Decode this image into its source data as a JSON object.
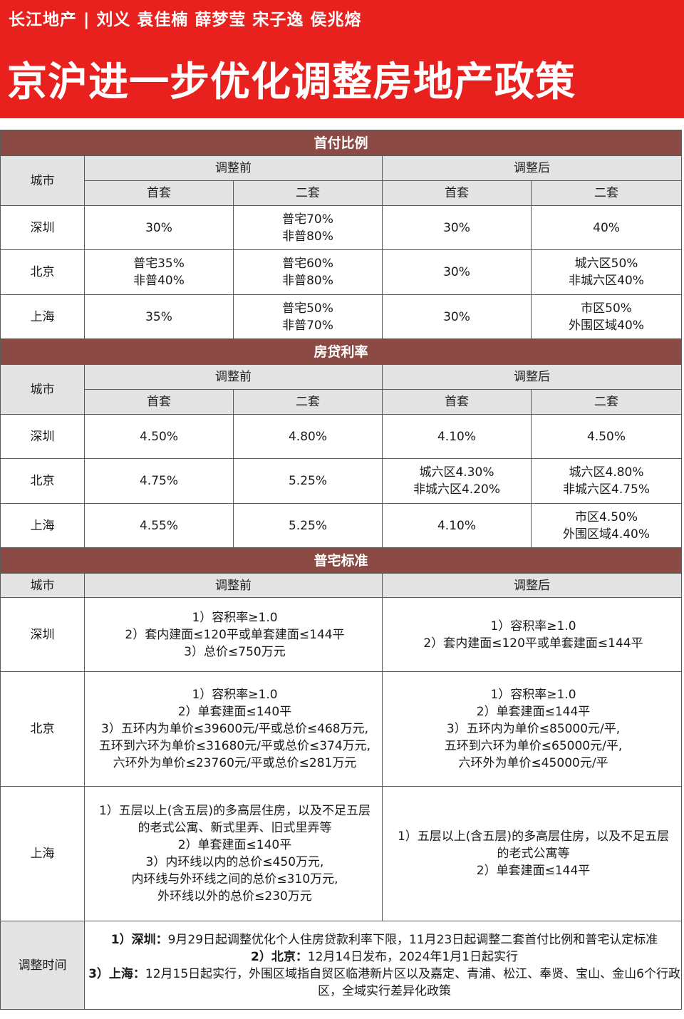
{
  "header": {
    "authors": "长江地产 | 刘义  袁佳楠  薛梦莹  宋子逸  侯兆熔",
    "title": "京沪进一步优化调整房地产政策"
  },
  "labels": {
    "city": "城市",
    "before": "调整前",
    "after": "调整后",
    "first_home": "首套",
    "second_home": "二套"
  },
  "sections": {
    "down_payment": "首付比例",
    "mortgage_rate": "房贷利率",
    "ordinary_housing": "普宅标准",
    "timing": "调整时间"
  },
  "down_payment_rows": [
    {
      "city": "深圳",
      "before_first": [
        "30%"
      ],
      "before_second": [
        "普宅70%",
        "非普80%"
      ],
      "after_first": [
        "30%"
      ],
      "after_second": [
        "40%"
      ]
    },
    {
      "city": "北京",
      "before_first": [
        "普宅35%",
        "非普40%"
      ],
      "before_second": [
        "普宅60%",
        "非普80%"
      ],
      "after_first": [
        "30%"
      ],
      "after_second": [
        "城六区50%",
        "非城六区40%"
      ]
    },
    {
      "city": "上海",
      "before_first": [
        "35%"
      ],
      "before_second": [
        "普宅50%",
        "非普70%"
      ],
      "after_first": [
        "30%"
      ],
      "after_second": [
        "市区50%",
        "外围区域40%"
      ]
    }
  ],
  "rate_rows": [
    {
      "city": "深圳",
      "before_first": [
        "4.50%"
      ],
      "before_second": [
        "4.80%"
      ],
      "after_first": [
        "4.10%"
      ],
      "after_second": [
        "4.50%"
      ]
    },
    {
      "city": "北京",
      "before_first": [
        "4.75%"
      ],
      "before_second": [
        "5.25%"
      ],
      "after_first": [
        "城六区4.30%",
        "非城六区4.20%"
      ],
      "after_second": [
        "城六区4.80%",
        "非城六区4.75%"
      ]
    },
    {
      "city": "上海",
      "before_first": [
        "4.55%"
      ],
      "before_second": [
        "5.25%"
      ],
      "after_first": [
        "4.10%"
      ],
      "after_second": [
        "市区4.50%",
        "外围区域4.40%"
      ]
    }
  ],
  "standard_rows": [
    {
      "city": "深圳",
      "before": [
        "1）容积率≥1.0",
        "2）套内建面≤120平或单套建面≤144平",
        "3）总价≤750万元"
      ],
      "after": [
        "1）容积率≥1.0",
        "2）套内建面≤120平或单套建面≤144平"
      ]
    },
    {
      "city": "北京",
      "before": [
        "1）容积率≥1.0",
        "2）单套建面≤140平",
        "3）五环内为单价≤39600元/平或总价≤468万元,",
        "五环到六环为单价≤31680元/平或总价≤374万元,",
        "六环外为单价≤23760元/平或总价≤281万元"
      ],
      "after": [
        "1）容积率≥1.0",
        "2）单套建面≤144平",
        "3）五环内为单价≤85000元/平,",
        "五环到六环为单价≤65000元/平,",
        "六环外为单价≤45000元/平"
      ]
    },
    {
      "city": "上海",
      "before": [
        "1）五层以上(含五层)的多高层住房，以及不足五层",
        "的老式公寓、新式里弄、旧式里弄等",
        "2）单套建面≤140平",
        "3）内环线以内的总价≤450万元,",
        "内环线与外环线之间的总价≤310万元,",
        "外环线以外的总价≤230万元"
      ],
      "after": [
        "1）五层以上(含五层)的多高层住房，以及不足五层",
        "的老式公寓等",
        "2）单套建面≤144平"
      ]
    }
  ],
  "timing_items": [
    {
      "prefix": "1）深圳：",
      "text": "9月29日起调整优化个人住房贷款利率下限，11月23日起调整二套首付比例和普宅认定标准"
    },
    {
      "prefix": "2）北京：",
      "text": "12月14日发布，2024年1月1日起实行"
    },
    {
      "prefix": "3）上海：",
      "text": "12月15日起实行，外围区域指自贸区临港新片区以及嘉定、青浦、松江、奉贤、宝山、金山6个行政区，全域实行差异化政策"
    }
  ],
  "colors": {
    "banner": "#e8201e",
    "section_bar": "#8b4a44",
    "header_cell": "#e3e3e3"
  }
}
